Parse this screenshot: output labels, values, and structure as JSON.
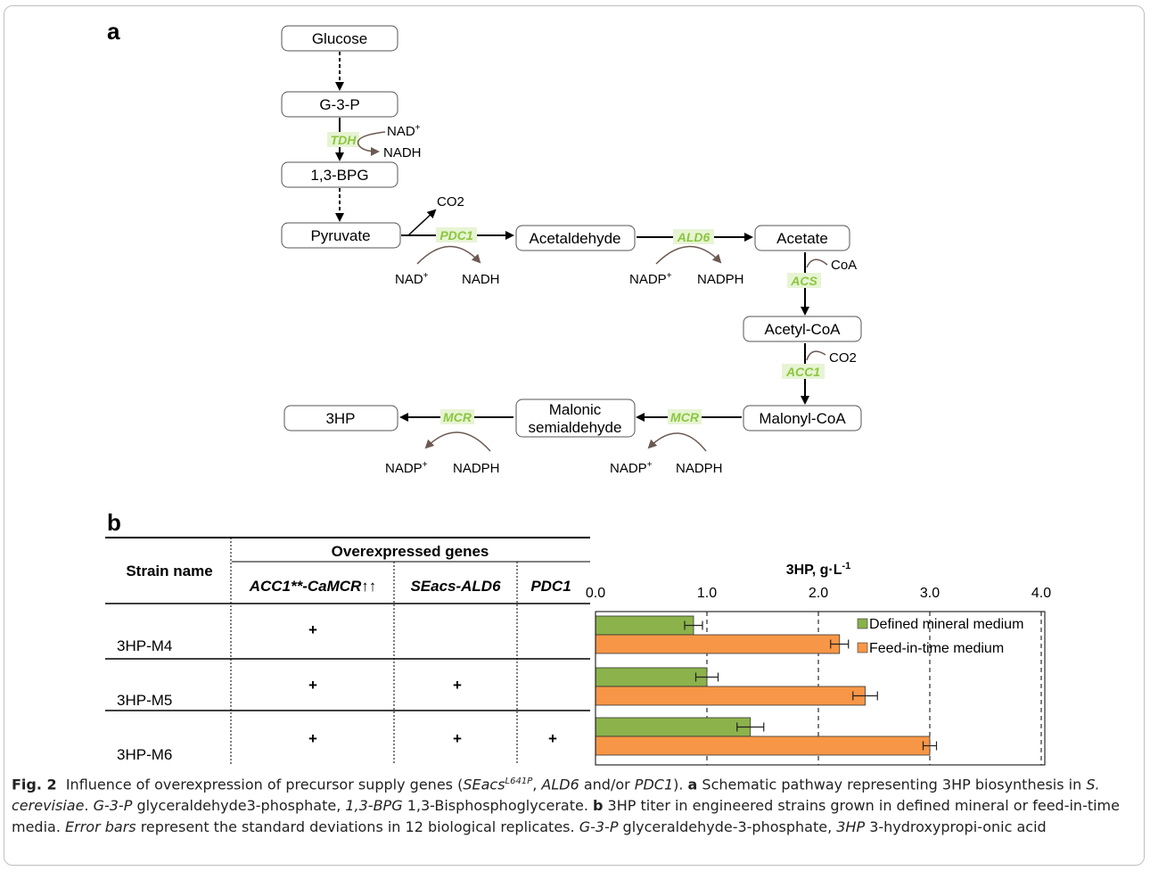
{
  "panel_a": {
    "label": "a",
    "metabolites": {
      "glucose": "Glucose",
      "g3p": "G-3-P",
      "bpg": "1,3-BPG",
      "pyruvate": "Pyruvate",
      "acetaldehyde": "Acetaldehyde",
      "acetate": "Acetate",
      "acetyl_coa": "Acetyl-CoA",
      "malonyl_coa": "Malonyl-CoA",
      "malonic_semialdehyde_1": "Malonic",
      "malonic_semialdehyde_2": "semialdehyde",
      "hp3": "3HP"
    },
    "enzymes": {
      "tdh": "TDH",
      "pdc1": "PDC1",
      "ald6": "ALD6",
      "acs": "ACS",
      "acc1": "ACC1",
      "mcr": "MCR"
    },
    "cofactors": {
      "nad": "NAD",
      "plus": "+",
      "nadh": "NADH",
      "nadp": "NADP",
      "nadph": "NADPH",
      "co2": "CO2",
      "coa": "CoA"
    },
    "colors": {
      "enzyme_text": "#8cc63f",
      "enzyme_box": "#e7f4d4",
      "cofactor_arrow": "#6b5a52"
    }
  },
  "panel_b": {
    "label": "b",
    "table": {
      "strain_header": "Strain name",
      "overexpressed_header": "Overexpressed genes",
      "gene_columns": [
        "ACC1**-CaMCR↑↑",
        "SEacs-ALD6",
        "PDC1"
      ],
      "rows": [
        {
          "strain": "3HP-M4",
          "marks": [
            "+",
            "",
            ""
          ]
        },
        {
          "strain": "3HP-M5",
          "marks": [
            "+",
            "+",
            ""
          ]
        },
        {
          "strain": "3HP-M6",
          "marks": [
            "+",
            "+",
            "+"
          ]
        }
      ]
    }
  },
  "chart_data": {
    "type": "bar",
    "orientation": "horizontal",
    "title": "3HP, g·L",
    "title_superscript": "-1",
    "categories": [
      "3HP-M4",
      "3HP-M5",
      "3HP-M6"
    ],
    "series": [
      {
        "name": "Defined mineral medium",
        "color": "#8bb24b",
        "values": [
          0.88,
          1.0,
          1.39
        ],
        "errors": [
          0.08,
          0.1,
          0.12
        ]
      },
      {
        "name": "Feed-in-time medium",
        "color": "#f79646",
        "values": [
          2.19,
          2.42,
          3.0
        ],
        "errors": [
          0.08,
          0.11,
          0.06
        ]
      }
    ],
    "xlim": [
      0,
      4
    ],
    "xticks": [
      "0.0",
      "1.0",
      "2.0",
      "3.0",
      "4.0"
    ],
    "xtick_values": [
      0,
      1,
      2,
      3,
      4
    ],
    "grid": "vertical dashed",
    "legend_position": "top-right"
  },
  "caption": {
    "fig_label": "Fig. 2",
    "t1": "Influence of overexpression of precursor supply genes (",
    "seacs": "SEacs",
    "l641p": "L641P",
    "t2": ", ",
    "ald6": "ALD6",
    "t3": " and/or ",
    "pdc1": "PDC1",
    "t4": "). ",
    "a": "a",
    "t5": " Schematic pathway representing 3HP biosynthesis in ",
    "scer": "S. cerevisiae",
    "t6": ". ",
    "g3p": "G-3-P",
    "t7": " glyceraldehyde3-phosphate, ",
    "bpg": "1,3-BPG",
    "t8": " 1,3-Bisphosphoglycerate. ",
    "b": "b",
    "t9": " 3HP titer in engineered strains grown in defined mineral or feed-in-time media. ",
    "errbars": "Error bars",
    "t10": " represent the standard deviations in 12 biological replicates. ",
    "g3p2": "G-3-P",
    "t11": " glyceraldehyde-3-phosphate, ",
    "hp3": "3HP",
    "t12": " 3-hydroxypropi-onic acid"
  }
}
